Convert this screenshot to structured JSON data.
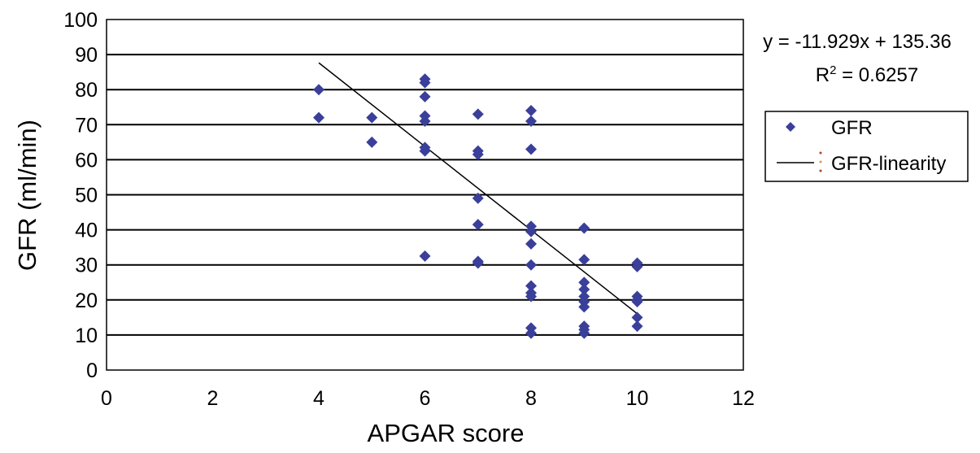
{
  "chart_data": {
    "type": "scatter",
    "xlabel": "APGAR score",
    "ylabel": "GFR (ml/min)",
    "xlim": [
      0,
      12
    ],
    "ylim": [
      0,
      100
    ],
    "x_ticks": [
      0,
      2,
      4,
      6,
      8,
      10,
      12
    ],
    "y_ticks": [
      0,
      10,
      20,
      30,
      40,
      50,
      60,
      70,
      80,
      90,
      100
    ],
    "grid": "horizontal",
    "series": [
      {
        "name": "GFR",
        "color": "#3a3f9a",
        "marker": "diamond",
        "points": [
          {
            "x": 4,
            "y": 80
          },
          {
            "x": 4,
            "y": 72
          },
          {
            "x": 5,
            "y": 72
          },
          {
            "x": 5,
            "y": 65
          },
          {
            "x": 6,
            "y": 83
          },
          {
            "x": 6,
            "y": 82
          },
          {
            "x": 6,
            "y": 78
          },
          {
            "x": 6,
            "y": 72.5
          },
          {
            "x": 6,
            "y": 71
          },
          {
            "x": 6,
            "y": 63.5
          },
          {
            "x": 6,
            "y": 62.5
          },
          {
            "x": 6,
            "y": 32.5
          },
          {
            "x": 7,
            "y": 73
          },
          {
            "x": 7,
            "y": 62.5
          },
          {
            "x": 7,
            "y": 61.5
          },
          {
            "x": 7,
            "y": 49
          },
          {
            "x": 7,
            "y": 41.5
          },
          {
            "x": 7,
            "y": 31
          },
          {
            "x": 7,
            "y": 30.5
          },
          {
            "x": 8,
            "y": 74
          },
          {
            "x": 8,
            "y": 71
          },
          {
            "x": 8,
            "y": 63
          },
          {
            "x": 8,
            "y": 41
          },
          {
            "x": 8,
            "y": 39.5
          },
          {
            "x": 8,
            "y": 36
          },
          {
            "x": 8,
            "y": 30
          },
          {
            "x": 8,
            "y": 24
          },
          {
            "x": 8,
            "y": 22
          },
          {
            "x": 8,
            "y": 21
          },
          {
            "x": 8,
            "y": 12
          },
          {
            "x": 8,
            "y": 10.5
          },
          {
            "x": 9,
            "y": 40.5
          },
          {
            "x": 9,
            "y": 31.5
          },
          {
            "x": 9,
            "y": 25
          },
          {
            "x": 9,
            "y": 23
          },
          {
            "x": 9,
            "y": 21
          },
          {
            "x": 9,
            "y": 19.5
          },
          {
            "x": 9,
            "y": 18
          },
          {
            "x": 9,
            "y": 12.5
          },
          {
            "x": 9,
            "y": 11.5
          },
          {
            "x": 9,
            "y": 10.5
          },
          {
            "x": 10,
            "y": 30.5
          },
          {
            "x": 10,
            "y": 29.5
          },
          {
            "x": 10,
            "y": 21
          },
          {
            "x": 10,
            "y": 20
          },
          {
            "x": 10,
            "y": 19.5
          },
          {
            "x": 10,
            "y": 15
          },
          {
            "x": 10,
            "y": 12.5
          }
        ]
      },
      {
        "name": "GFR-linearity",
        "type": "line",
        "color": "#000000",
        "slope": -11.929,
        "intercept": 135.36,
        "x_range": [
          4,
          10
        ]
      }
    ],
    "annotation": {
      "equation": "y = -11.929x + 135.36",
      "r2_label": "R",
      "r2_sup": "2",
      "r2_value": " = 0.6257"
    },
    "legend": {
      "placement": "right",
      "entries": [
        "GFR",
        "GFR-linearity"
      ]
    }
  }
}
